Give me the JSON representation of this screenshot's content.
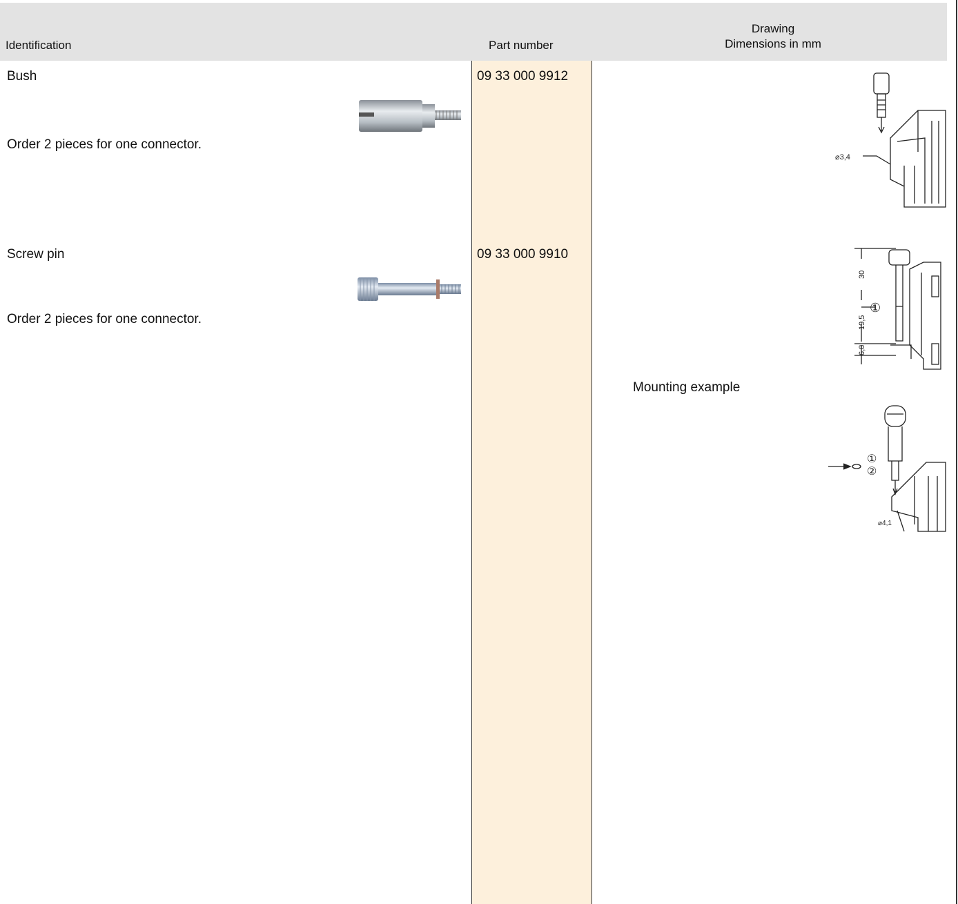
{
  "header": {
    "identification": "Identification",
    "part_number": "Part number",
    "drawing": "Drawing",
    "dimensions": "Dimensions in mm"
  },
  "rows": [
    {
      "name": "Bush",
      "note": "Order 2 pieces for one connector.",
      "part_number": "09 33 000 9912",
      "drawing_labels": [
        "⌀3,4"
      ]
    },
    {
      "name": "Screw pin",
      "note": "Order 2 pieces for one connector.",
      "part_number": "09 33 000 9910",
      "drawing_labels": [
        "30",
        "19,5",
        "6,8",
        "①"
      ],
      "mounting_caption": "Mounting example",
      "mounting_labels": [
        "①",
        "②",
        "⌀4,1"
      ]
    }
  ]
}
